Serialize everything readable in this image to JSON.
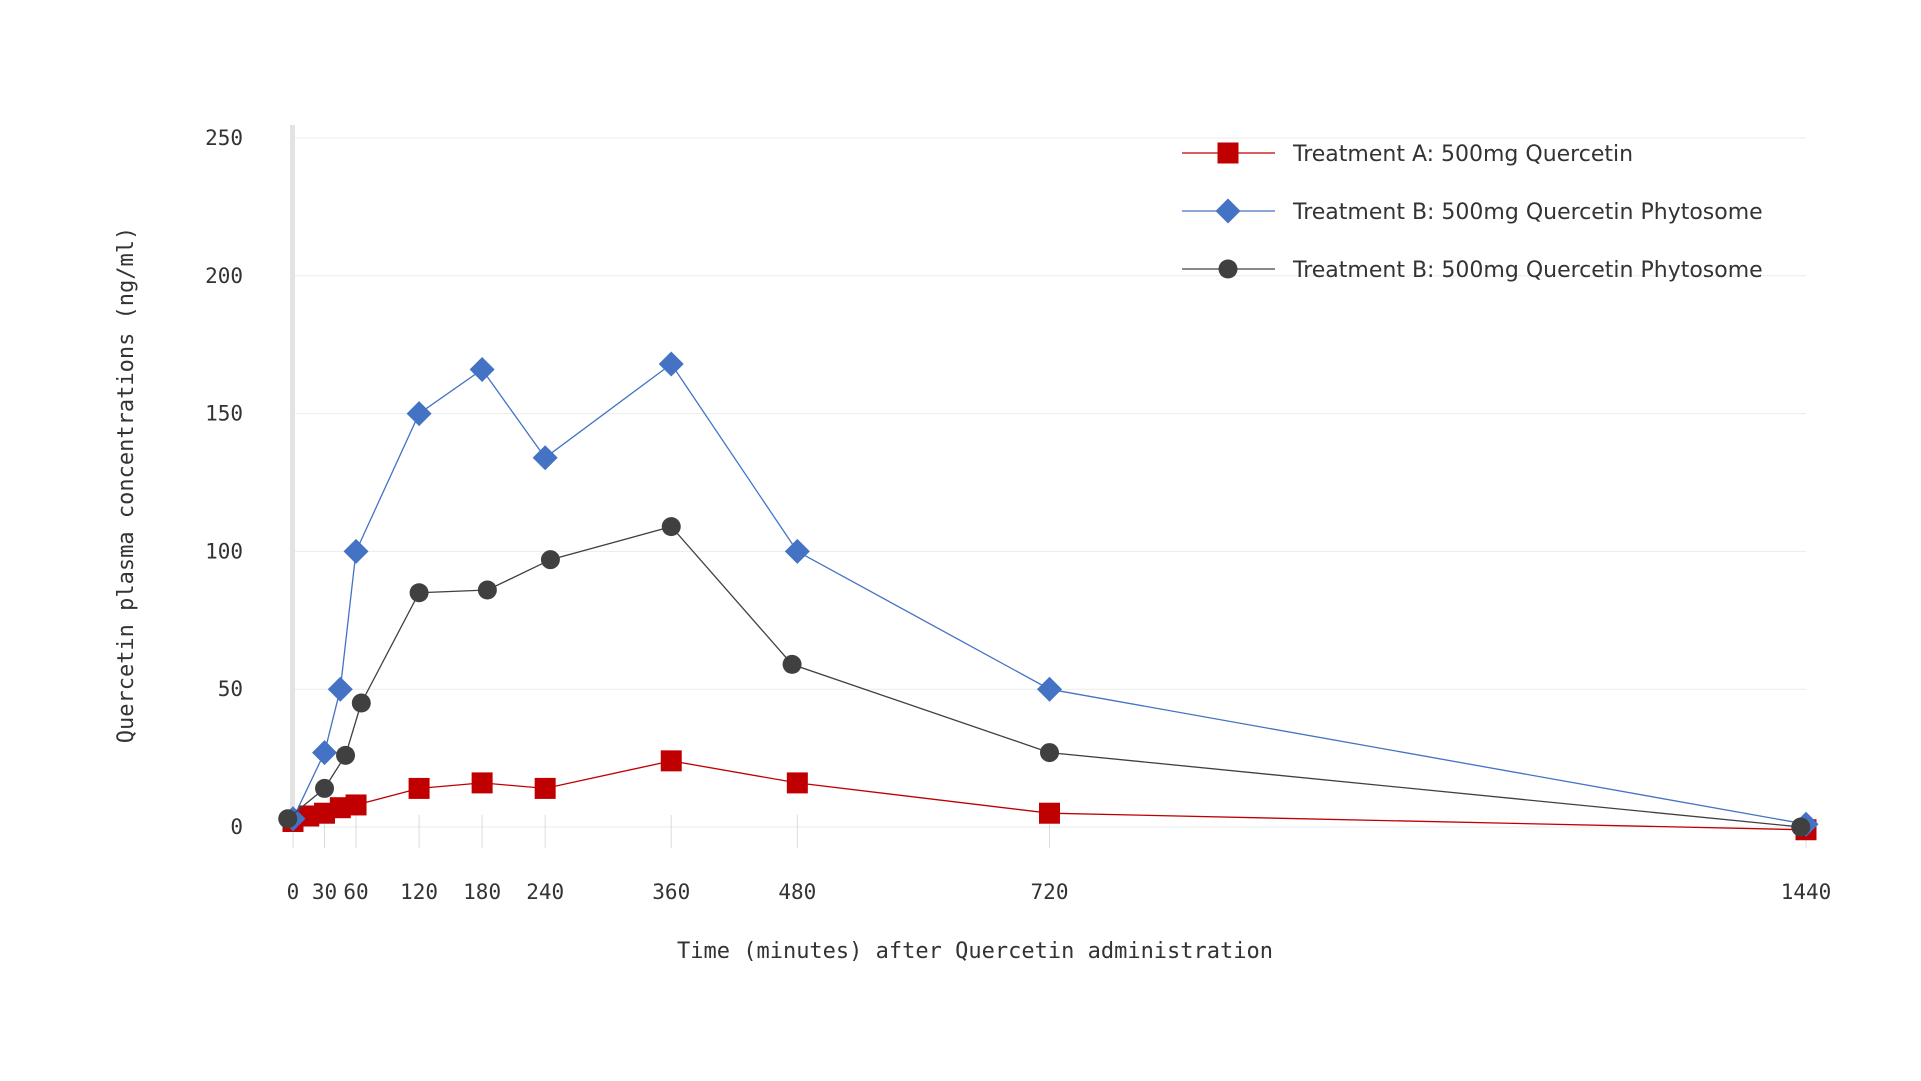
{
  "chart_data": {
    "type": "line",
    "title": "",
    "xlabel": "Time (minutes) after Quercetin administration",
    "ylabel": "Quercetin plasma concentrations (ng/ml)",
    "xlim": [
      0,
      1440
    ],
    "ylim": [
      0,
      250
    ],
    "x_ticks": [
      0,
      30,
      60,
      120,
      180,
      240,
      360,
      480,
      720,
      1440
    ],
    "y_ticks": [
      0,
      50,
      100,
      150,
      200,
      250
    ],
    "grid": true,
    "legend_position": "top-right",
    "series": [
      {
        "name": "Treatment A: 500mg Quercetin",
        "color": "#c00000",
        "marker": "square",
        "x": [
          0,
          15,
          30,
          45,
          60,
          120,
          180,
          240,
          360,
          480,
          720,
          1440
        ],
        "y": [
          2,
          4,
          5,
          7,
          8,
          14,
          16,
          14,
          24,
          16,
          5,
          -1
        ]
      },
      {
        "name": "Treatment B: 500mg Quercetin Phytosome",
        "color": "#4472c4",
        "marker": "diamond",
        "x": [
          0,
          30,
          45,
          60,
          120,
          180,
          240,
          360,
          480,
          720,
          1440
        ],
        "y": [
          3,
          27,
          50,
          100,
          150,
          166,
          134,
          168,
          100,
          50,
          1
        ]
      },
      {
        "name": "Treatment B: 500mg Quercetin Phytosome",
        "color": "#404040",
        "marker": "circle",
        "x": [
          -5,
          30,
          50,
          65,
          120,
          185,
          245,
          360,
          475,
          720,
          1435
        ],
        "y": [
          3,
          14,
          26,
          45,
          85,
          86,
          97,
          109,
          59,
          27,
          0
        ]
      }
    ]
  }
}
